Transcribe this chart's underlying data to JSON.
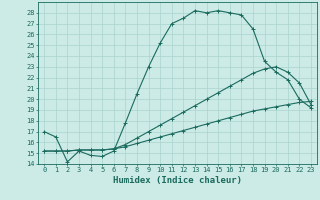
{
  "title": "",
  "xlabel": "Humidex (Indice chaleur)",
  "bg_color": "#cceae6",
  "grid_color": "#aad4ce",
  "line_color": "#1a6b5e",
  "xlim": [
    -0.5,
    23.5
  ],
  "ylim": [
    14,
    29
  ],
  "xticks": [
    0,
    1,
    2,
    3,
    4,
    5,
    6,
    7,
    8,
    9,
    10,
    11,
    12,
    13,
    14,
    15,
    16,
    17,
    18,
    19,
    20,
    21,
    22,
    23
  ],
  "yticks": [
    14,
    15,
    16,
    17,
    18,
    19,
    20,
    21,
    22,
    23,
    24,
    25,
    26,
    27,
    28
  ],
  "line1_x": [
    0,
    1,
    2,
    3,
    4,
    5,
    6,
    7,
    8,
    9,
    10,
    11,
    12,
    13,
    14,
    15,
    16,
    17,
    18,
    19,
    20,
    21,
    22,
    23
  ],
  "line1_y": [
    17.0,
    16.5,
    14.2,
    15.2,
    14.8,
    14.7,
    15.2,
    17.8,
    20.5,
    23.0,
    25.2,
    27.0,
    27.5,
    28.2,
    28.0,
    28.2,
    28.0,
    27.8,
    26.5,
    23.5,
    22.5,
    21.8,
    20.0,
    19.2
  ],
  "line2_x": [
    0,
    1,
    2,
    3,
    4,
    5,
    6,
    7,
    8,
    9,
    10,
    11,
    12,
    13,
    14,
    15,
    16,
    17,
    18,
    19,
    20,
    21,
    22,
    23
  ],
  "line2_y": [
    15.2,
    15.2,
    15.2,
    15.3,
    15.3,
    15.3,
    15.4,
    15.6,
    15.9,
    16.2,
    16.5,
    16.8,
    17.1,
    17.4,
    17.7,
    18.0,
    18.3,
    18.6,
    18.9,
    19.1,
    19.3,
    19.5,
    19.7,
    19.8
  ],
  "line3_x": [
    0,
    1,
    2,
    3,
    4,
    5,
    6,
    7,
    8,
    9,
    10,
    11,
    12,
    13,
    14,
    15,
    16,
    17,
    18,
    19,
    20,
    21,
    22,
    23
  ],
  "line3_y": [
    15.2,
    15.2,
    15.2,
    15.3,
    15.3,
    15.3,
    15.4,
    15.8,
    16.4,
    17.0,
    17.6,
    18.2,
    18.8,
    19.4,
    20.0,
    20.6,
    21.2,
    21.8,
    22.4,
    22.8,
    23.0,
    22.5,
    21.5,
    19.5
  ],
  "tick_fontsize": 5.0,
  "xlabel_fontsize": 6.5
}
